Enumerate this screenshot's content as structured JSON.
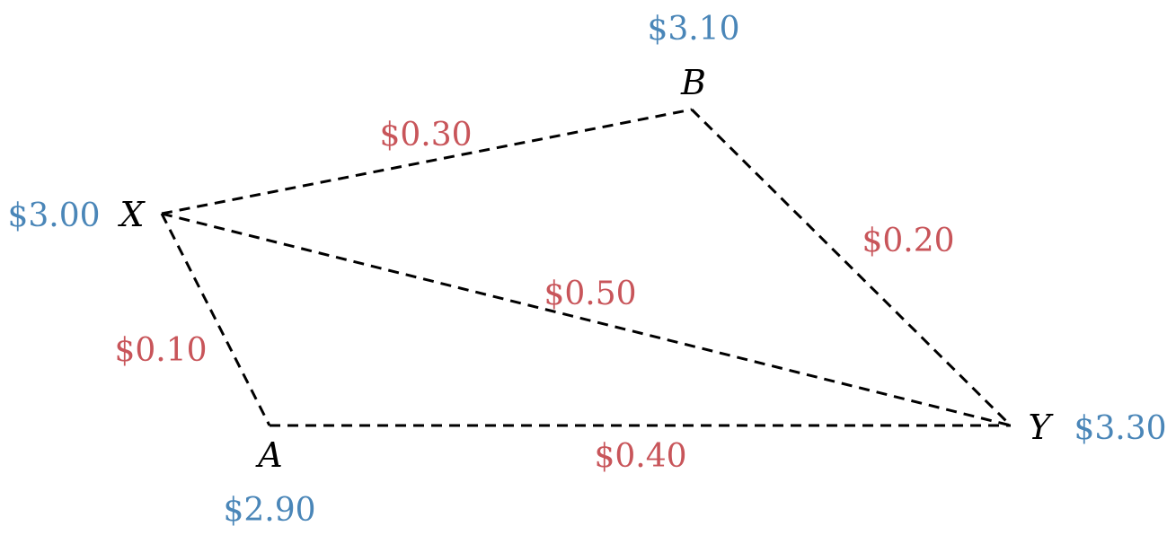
{
  "nodes": {
    "X": {
      "name": "X",
      "price": "$3.00"
    },
    "A": {
      "name": "A",
      "price": "$2.90"
    },
    "B": {
      "name": "B",
      "price": "$3.10"
    },
    "Y": {
      "name": "Y",
      "price": "$3.30"
    }
  },
  "edges": {
    "X_B": {
      "cost": "$0.30"
    },
    "B_Y": {
      "cost": "$0.20"
    },
    "X_Y": {
      "cost": "$0.50"
    },
    "X_A": {
      "cost": "$0.10"
    },
    "A_Y": {
      "cost": "$0.40"
    }
  },
  "colors": {
    "price": "#4a86b8",
    "cost": "#c8555a",
    "edge": "#000000"
  }
}
